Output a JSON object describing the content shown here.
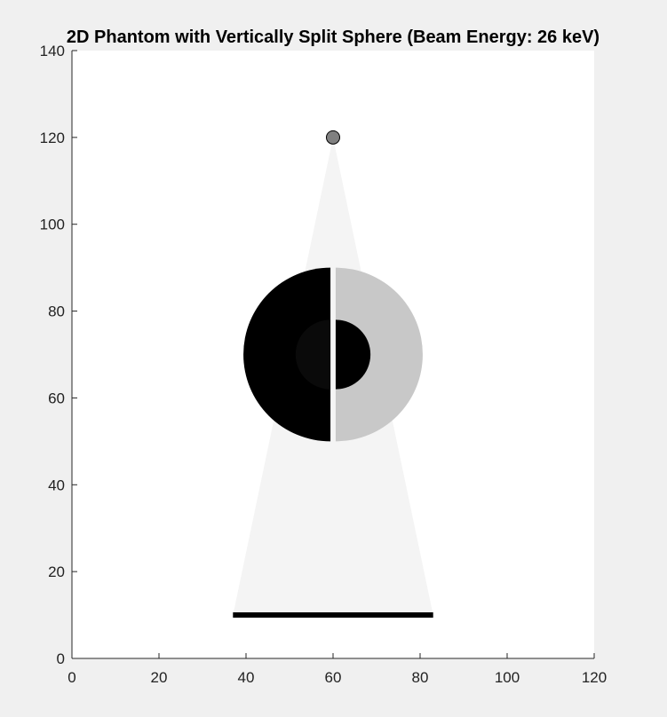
{
  "chart_data": {
    "type": "scatter",
    "title": "2D Phantom with Vertically Split Sphere (Beam Energy: 26 keV)",
    "xlabel": "",
    "ylabel": "",
    "xlim": [
      0,
      120
    ],
    "ylim": [
      0,
      140
    ],
    "xticks": [
      0,
      20,
      40,
      60,
      80,
      100,
      120
    ],
    "yticks": [
      0,
      20,
      40,
      60,
      80,
      100,
      120,
      140
    ],
    "grid": false,
    "legend": "none",
    "source": {
      "x": 60,
      "y": 120,
      "color": "#808080"
    },
    "beam_cone": {
      "apex": [
        60,
        120
      ],
      "base_left": [
        37,
        10
      ],
      "base_right": [
        83,
        10
      ],
      "color": "#f4f4f4"
    },
    "detector": {
      "x_start": 37,
      "x_end": 83,
      "y": 10,
      "color": "#000000"
    },
    "sphere": {
      "center": [
        60,
        70
      ],
      "radius": 20,
      "split_gap": 1.2,
      "left_half_color": "#000000",
      "right_half_color": "#c8c8c8",
      "inner_radius": 8,
      "inner_left_color": "#0a0a0a",
      "inner_right_color": "#000000"
    }
  }
}
